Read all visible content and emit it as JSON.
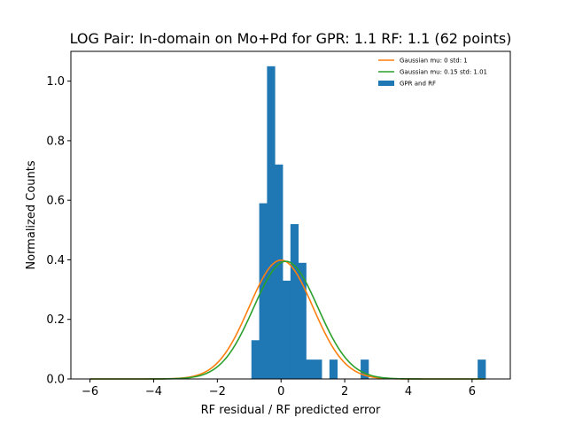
{
  "chart_data": {
    "type": "bar",
    "title": "LOG Pair: In-domain on Mo+Pd for GPR: 1.1 RF: 1.1 (62 points)",
    "xlabel": "RF residual / RF predicted error",
    "ylabel": "Normalized Counts",
    "xlim": [
      -6.6,
      7.2
    ],
    "ylim": [
      0,
      1.1
    ],
    "xticks": [
      -6,
      -4,
      -2,
      0,
      2,
      4,
      6
    ],
    "yticks": [
      0.0,
      0.2,
      0.4,
      0.6,
      0.8,
      1.0
    ],
    "xtick_labels": [
      "−6",
      "−4",
      "−2",
      "0",
      "2",
      "4",
      "6"
    ],
    "ytick_labels": [
      "0.0",
      "0.2",
      "0.4",
      "0.6",
      "0.8",
      "1.0"
    ],
    "grid": false,
    "legend_position": "top-right",
    "histogram": {
      "name": "GPR and RF",
      "color": "#1f77b4",
      "bin_width": 0.245,
      "bins": [
        {
          "x0": -0.93,
          "value": 0.13
        },
        {
          "x0": -0.685,
          "value": 0.59
        },
        {
          "x0": -0.44,
          "value": 1.05
        },
        {
          "x0": -0.195,
          "value": 0.72
        },
        {
          "x0": 0.05,
          "value": 0.33
        },
        {
          "x0": 0.295,
          "value": 0.52
        },
        {
          "x0": 0.54,
          "value": 0.39
        },
        {
          "x0": 0.785,
          "value": 0.065
        },
        {
          "x0": 1.03,
          "value": 0.065
        },
        {
          "x0": 1.52,
          "value": 0.065
        },
        {
          "x0": 2.5,
          "value": 0.065
        },
        {
          "x0": 6.175,
          "value": 0.065
        }
      ]
    },
    "curves": [
      {
        "name": "Gaussian mu: 0 std: 1",
        "color": "#ff7f0e",
        "mu": 0,
        "std": 1,
        "x_range": [
          -6,
          6.4
        ]
      },
      {
        "name": "Gaussian mu: 0.15 std: 1.01",
        "color": "#2ca02c",
        "mu": 0.15,
        "std": 1.01,
        "x_range": [
          -6,
          6.4
        ]
      }
    ]
  }
}
